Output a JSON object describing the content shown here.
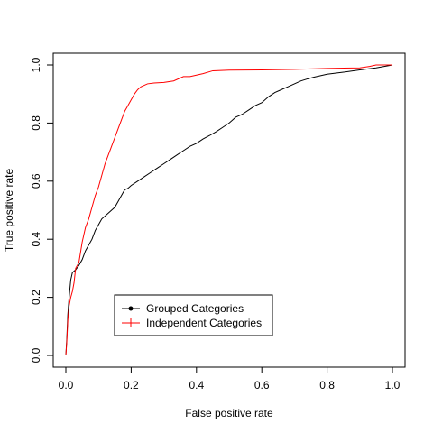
{
  "chart_data": {
    "type": "line",
    "title": "",
    "xlabel": "False positive rate",
    "ylabel": "True positive rate",
    "xlim": [
      0,
      1
    ],
    "ylim": [
      0,
      1
    ],
    "xticks": [
      "0.0",
      "0.2",
      "0.4",
      "0.6",
      "0.8",
      "1.0"
    ],
    "yticks": [
      "0.0",
      "0.2",
      "0.4",
      "0.6",
      "0.8",
      "1.0"
    ],
    "grid": false,
    "legend_position": "bottom-left",
    "series": [
      {
        "name": "Grouped Categories",
        "color": "#000000",
        "marker": "circle",
        "x": [
          0,
          0.003,
          0.006,
          0.01,
          0.015,
          0.02,
          0.03,
          0.04,
          0.05,
          0.06,
          0.07,
          0.08,
          0.09,
          0.1,
          0.11,
          0.12,
          0.13,
          0.14,
          0.15,
          0.16,
          0.17,
          0.18,
          0.19,
          0.2,
          0.22,
          0.24,
          0.26,
          0.28,
          0.3,
          0.32,
          0.34,
          0.36,
          0.38,
          0.4,
          0.42,
          0.44,
          0.46,
          0.48,
          0.5,
          0.52,
          0.54,
          0.56,
          0.58,
          0.6,
          0.62,
          0.64,
          0.66,
          0.68,
          0.7,
          0.72,
          0.74,
          0.76,
          0.78,
          0.8,
          0.85,
          0.9,
          0.95,
          1.0
        ],
        "y": [
          0.0,
          0.06,
          0.14,
          0.2,
          0.26,
          0.285,
          0.295,
          0.31,
          0.33,
          0.36,
          0.38,
          0.4,
          0.43,
          0.45,
          0.47,
          0.48,
          0.49,
          0.5,
          0.51,
          0.53,
          0.55,
          0.57,
          0.575,
          0.585,
          0.6,
          0.615,
          0.63,
          0.645,
          0.66,
          0.675,
          0.69,
          0.705,
          0.72,
          0.73,
          0.745,
          0.757,
          0.77,
          0.785,
          0.8,
          0.82,
          0.83,
          0.845,
          0.86,
          0.87,
          0.89,
          0.905,
          0.915,
          0.925,
          0.935,
          0.945,
          0.952,
          0.958,
          0.963,
          0.968,
          0.975,
          0.983,
          0.99,
          1.0
        ]
      },
      {
        "name": "Independent Categories",
        "color": "#ff0000",
        "marker": "plus",
        "x": [
          0,
          0.003,
          0.006,
          0.01,
          0.015,
          0.02,
          0.025,
          0.03,
          0.04,
          0.05,
          0.06,
          0.07,
          0.08,
          0.09,
          0.1,
          0.11,
          0.12,
          0.13,
          0.14,
          0.15,
          0.16,
          0.17,
          0.18,
          0.19,
          0.2,
          0.21,
          0.22,
          0.23,
          0.24,
          0.25,
          0.27,
          0.3,
          0.33,
          0.36,
          0.38,
          0.4,
          0.42,
          0.45,
          0.5,
          0.6,
          0.7,
          0.8,
          0.9,
          0.93,
          0.95,
          1.0
        ],
        "y": [
          0.0,
          0.05,
          0.12,
          0.17,
          0.2,
          0.22,
          0.25,
          0.3,
          0.32,
          0.39,
          0.44,
          0.47,
          0.51,
          0.55,
          0.58,
          0.62,
          0.66,
          0.69,
          0.72,
          0.75,
          0.78,
          0.81,
          0.84,
          0.86,
          0.88,
          0.9,
          0.915,
          0.925,
          0.93,
          0.935,
          0.938,
          0.94,
          0.945,
          0.96,
          0.96,
          0.965,
          0.97,
          0.98,
          0.982,
          0.983,
          0.985,
          0.988,
          0.99,
          0.995,
          1.0,
          1.0
        ]
      }
    ]
  }
}
